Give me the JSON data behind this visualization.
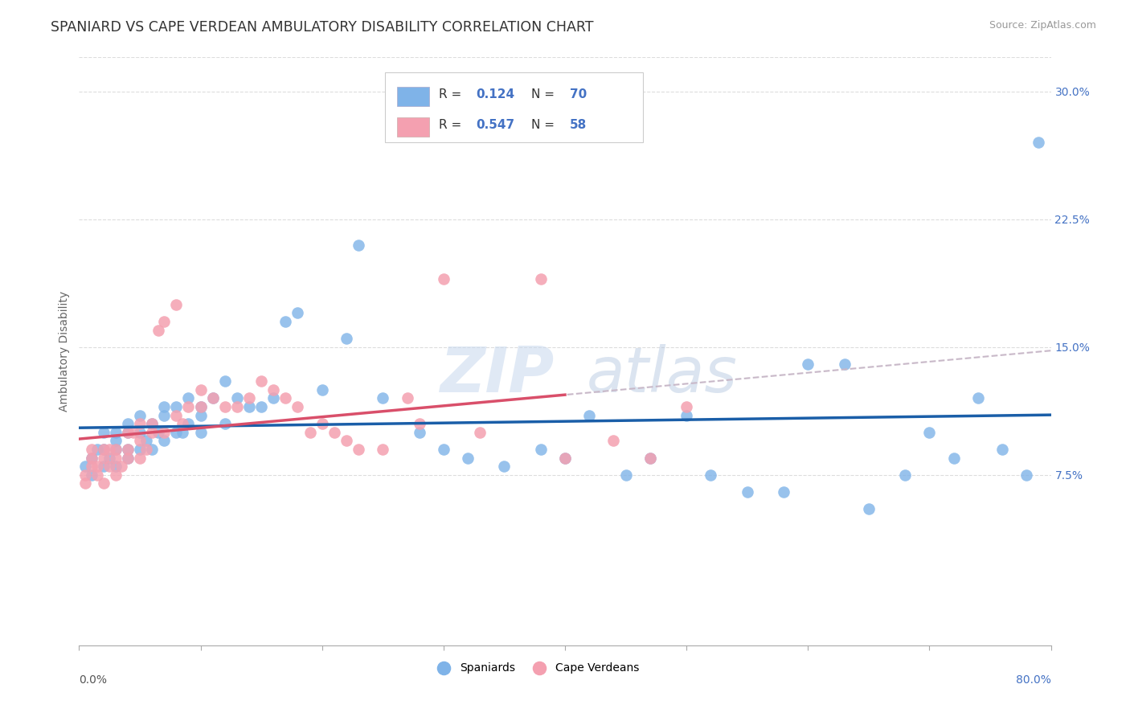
{
  "title": "SPANIARD VS CAPE VERDEAN AMBULATORY DISABILITY CORRELATION CHART",
  "source": "Source: ZipAtlas.com",
  "ylabel": "Ambulatory Disability",
  "xlim": [
    0.0,
    0.8
  ],
  "ylim": [
    -0.025,
    0.32
  ],
  "r_spaniard": 0.124,
  "n_spaniard": 70,
  "r_cape_verdean": 0.547,
  "n_cape_verdean": 58,
  "color_spaniard": "#7FB3E8",
  "color_cape_verdean": "#F4A0B0",
  "line_color_spaniard": "#1A5EA8",
  "line_color_cape_verdean": "#D94F6A",
  "line_color_dashed": "#C8B8C8",
  "bg_color": "#FFFFFF",
  "grid_color": "#DDDDDD",
  "ytick_vals": [
    0.075,
    0.15,
    0.225,
    0.3
  ],
  "ytick_labels": [
    "7.5%",
    "15.0%",
    "22.5%",
    "30.0%"
  ],
  "spaniard_x": [
    0.005,
    0.01,
    0.01,
    0.015,
    0.02,
    0.02,
    0.02,
    0.025,
    0.03,
    0.03,
    0.03,
    0.03,
    0.04,
    0.04,
    0.04,
    0.04,
    0.05,
    0.05,
    0.05,
    0.055,
    0.06,
    0.06,
    0.065,
    0.07,
    0.07,
    0.07,
    0.08,
    0.08,
    0.085,
    0.09,
    0.09,
    0.1,
    0.1,
    0.1,
    0.11,
    0.12,
    0.12,
    0.13,
    0.14,
    0.15,
    0.16,
    0.17,
    0.18,
    0.2,
    0.22,
    0.23,
    0.25,
    0.28,
    0.3,
    0.32,
    0.35,
    0.38,
    0.4,
    0.42,
    0.45,
    0.47,
    0.5,
    0.52,
    0.55,
    0.58,
    0.6,
    0.63,
    0.65,
    0.68,
    0.7,
    0.72,
    0.74,
    0.76,
    0.78,
    0.79
  ],
  "spaniard_y": [
    0.08,
    0.075,
    0.085,
    0.09,
    0.08,
    0.09,
    0.1,
    0.085,
    0.09,
    0.1,
    0.095,
    0.08,
    0.09,
    0.1,
    0.105,
    0.085,
    0.09,
    0.1,
    0.11,
    0.095,
    0.09,
    0.105,
    0.1,
    0.095,
    0.11,
    0.115,
    0.1,
    0.115,
    0.1,
    0.105,
    0.12,
    0.1,
    0.11,
    0.115,
    0.12,
    0.105,
    0.13,
    0.12,
    0.115,
    0.115,
    0.12,
    0.165,
    0.17,
    0.125,
    0.155,
    0.21,
    0.12,
    0.1,
    0.09,
    0.085,
    0.08,
    0.09,
    0.085,
    0.11,
    0.075,
    0.085,
    0.11,
    0.075,
    0.065,
    0.065,
    0.14,
    0.14,
    0.055,
    0.075,
    0.1,
    0.085,
    0.12,
    0.09,
    0.075,
    0.27
  ],
  "cape_verdean_x": [
    0.005,
    0.005,
    0.01,
    0.01,
    0.01,
    0.015,
    0.015,
    0.02,
    0.02,
    0.02,
    0.025,
    0.025,
    0.03,
    0.03,
    0.03,
    0.035,
    0.04,
    0.04,
    0.04,
    0.045,
    0.05,
    0.05,
    0.05,
    0.055,
    0.06,
    0.06,
    0.065,
    0.07,
    0.07,
    0.08,
    0.08,
    0.085,
    0.09,
    0.1,
    0.1,
    0.11,
    0.12,
    0.13,
    0.14,
    0.15,
    0.16,
    0.17,
    0.18,
    0.19,
    0.2,
    0.21,
    0.22,
    0.23,
    0.25,
    0.27,
    0.28,
    0.3,
    0.33,
    0.38,
    0.4,
    0.44,
    0.47,
    0.5
  ],
  "cape_verdean_y": [
    0.07,
    0.075,
    0.08,
    0.085,
    0.09,
    0.075,
    0.08,
    0.085,
    0.09,
    0.07,
    0.09,
    0.08,
    0.085,
    0.09,
    0.075,
    0.08,
    0.1,
    0.09,
    0.085,
    0.1,
    0.095,
    0.085,
    0.105,
    0.09,
    0.1,
    0.105,
    0.16,
    0.1,
    0.165,
    0.11,
    0.175,
    0.105,
    0.115,
    0.115,
    0.125,
    0.12,
    0.115,
    0.115,
    0.12,
    0.13,
    0.125,
    0.12,
    0.115,
    0.1,
    0.105,
    0.1,
    0.095,
    0.09,
    0.09,
    0.12,
    0.105,
    0.19,
    0.1,
    0.19,
    0.085,
    0.095,
    0.085,
    0.115
  ]
}
